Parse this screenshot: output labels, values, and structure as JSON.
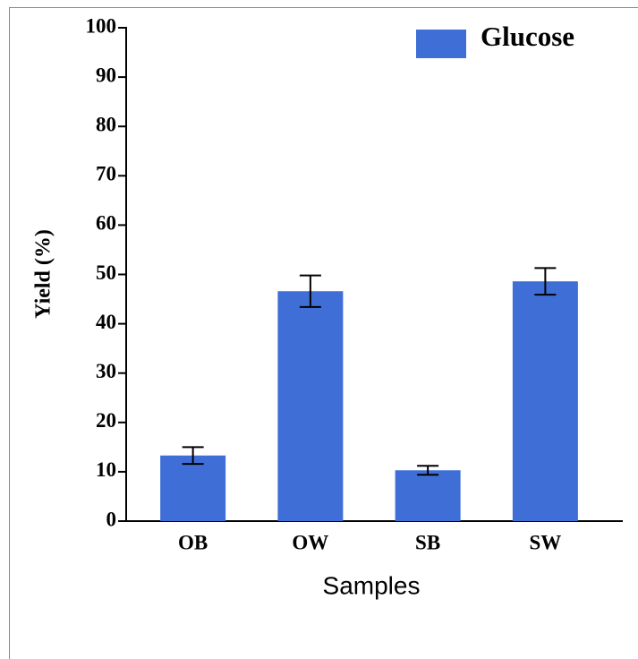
{
  "chart_data": {
    "type": "bar",
    "xlabel": "Samples",
    "ylabel": "Yield (%)",
    "categories": [
      "OB",
      "OW",
      "SB",
      "SW"
    ],
    "series": [
      {
        "name": "Glucose",
        "color": "#3f6fd6",
        "values": [
          13.3,
          46.6,
          10.3,
          48.6
        ],
        "errors": [
          1.7,
          3.2,
          0.9,
          2.7
        ]
      }
    ],
    "ylim": [
      0,
      100
    ],
    "yticks": [
      0,
      10,
      20,
      30,
      40,
      50,
      60,
      70,
      80,
      90,
      100
    ],
    "grid": false,
    "legend": "upper right"
  }
}
